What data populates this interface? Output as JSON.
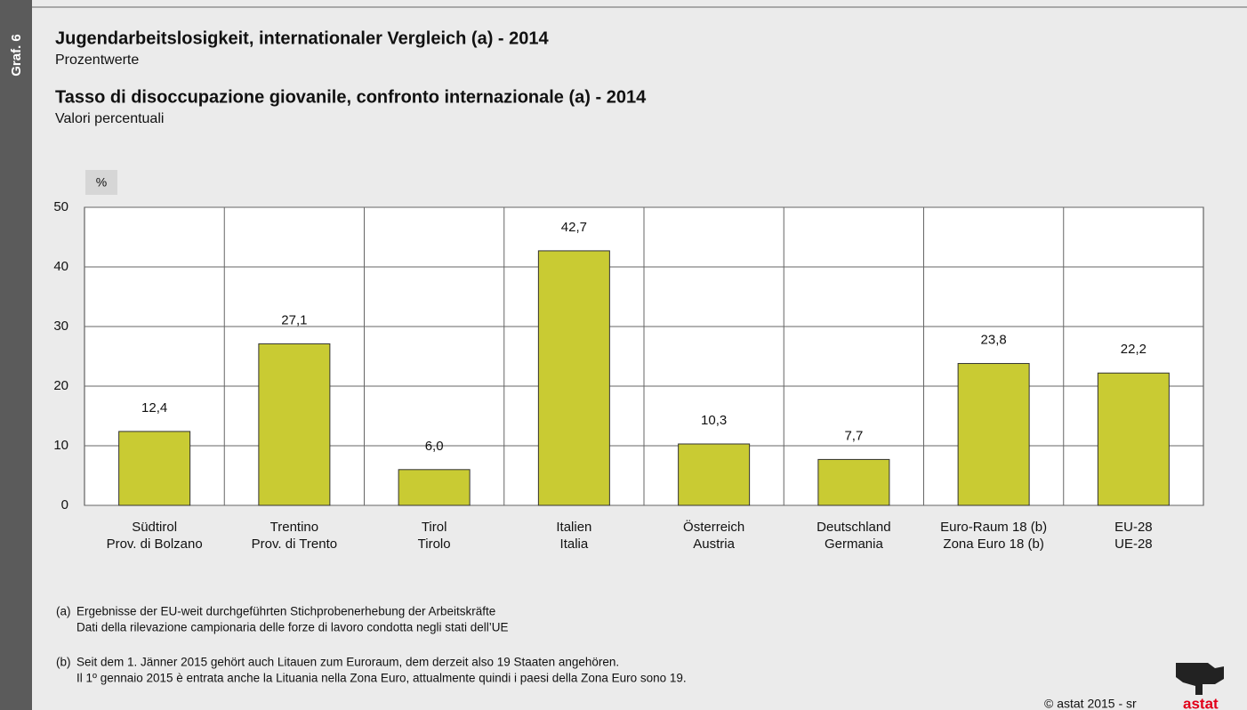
{
  "side_label": "Graf. 6",
  "chart_data": {
    "type": "bar",
    "title": "Jugendarbeitslosigkeit, internationaler Vergleich (a) - 2014",
    "subtitle": "Prozentwerte",
    "title_it": "Tasso di disoccupazione giovanile, confronto internazionale (a) - 2014",
    "subtitle_it": "Valori percentuali",
    "y_unit": "%",
    "categories": [
      "Südtirol\nProv. di Bolzano",
      "Trentino\nProv. di Trento",
      "Tirol\nTirolo",
      "Italien\nItalia",
      "Österreich\nAustria",
      "Deutschland\nGermania",
      "Euro-Raum 18 (b)\nZona Euro 18 (b)",
      "EU-28\nUE-28"
    ],
    "values": [
      12.4,
      27.1,
      6.0,
      42.7,
      10.3,
      7.7,
      23.8,
      22.2
    ],
    "value_labels": [
      "12,4",
      "27,1",
      "6,0",
      "42,7",
      "10,3",
      "7,7",
      "23,8",
      "22,2"
    ],
    "color": "#c9cb33",
    "ylim": [
      0,
      50
    ],
    "yticks": [
      0,
      10,
      20,
      30,
      40,
      50
    ],
    "grid": true
  },
  "notes": [
    {
      "marker": "(a)",
      "lines": [
        "Ergebnisse der EU-weit durchgeführten Stichprobenerhebung der Arbeitskräfte",
        "Dati della rilevazione campionaria delle forze di lavoro condotta negli stati dell’UE"
      ]
    },
    {
      "marker": "(b)",
      "lines": [
        "Seit dem 1. Jänner 2015 gehört auch Litauen zum Euroraum, dem derzeit also 19 Staaten angehören.",
        "Il 1º gennaio 2015 è entrata anche la Lituania nella Zona Euro, attualmente quindi i paesi della Zona Euro sono 19."
      ]
    }
  ],
  "footer": {
    "copyright": "© astat 2015 - sr",
    "logo": "astat"
  }
}
